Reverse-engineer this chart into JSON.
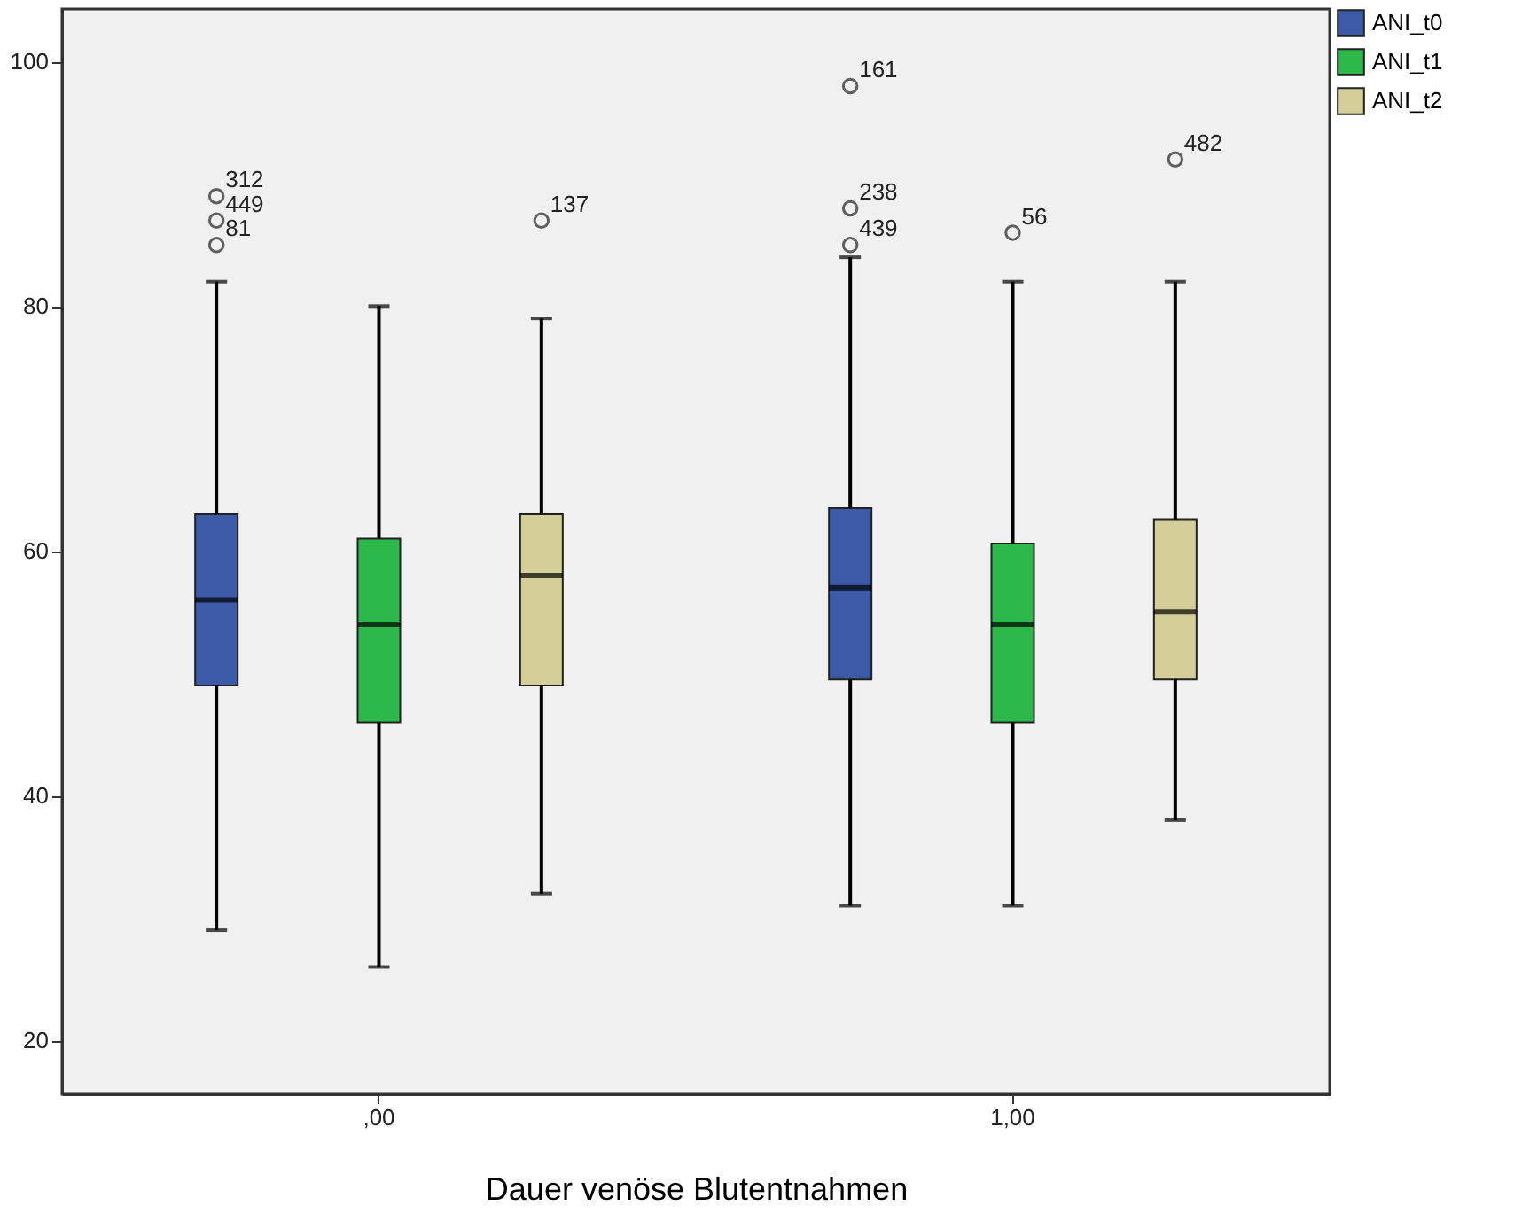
{
  "chart_data": {
    "type": "box",
    "xlabel": "Dauer venöse Blutentnahmen",
    "categories": [
      ",00",
      "1,00"
    ],
    "ylim": [
      15.6,
      104.3
    ],
    "yticks": [
      20,
      40,
      60,
      80,
      100
    ],
    "grid": false,
    "legend": "top right",
    "series": [
      {
        "name": "ANI_t0",
        "color": "#3d5aa8",
        "boxes": [
          {
            "low": 29,
            "q1": 49,
            "median": 56,
            "q3": 63,
            "high": 82,
            "outliers": [
              89,
              87,
              85
            ]
          },
          {
            "low": 31,
            "q1": 49.5,
            "median": 57,
            "q3": 63.5,
            "high": 84,
            "outliers": [
              98,
              88,
              85
            ]
          }
        ]
      },
      {
        "name": "ANI_t1",
        "color": "#2db84a",
        "boxes": [
          {
            "low": 26,
            "q1": 46,
            "median": 54,
            "q3": 61,
            "high": 80
          },
          {
            "low": 31,
            "q1": 46,
            "median": 54,
            "q3": 60.6,
            "high": 82,
            "outliers": [
              86
            ]
          }
        ]
      },
      {
        "name": "ANI_t2",
        "color": "#d4cf98",
        "boxes": [
          {
            "low": 32,
            "q1": 49,
            "median": 58,
            "q3": 63,
            "high": 79,
            "outliers": [
              87
            ]
          },
          {
            "low": 38,
            "q1": 49.5,
            "median": 55,
            "q3": 62.6,
            "high": 82,
            "outliers": [
              92
            ]
          }
        ]
      }
    ],
    "annotations": [
      "312",
      "449",
      "81",
      "161",
      "238",
      "439",
      "56",
      "137",
      "482"
    ]
  }
}
